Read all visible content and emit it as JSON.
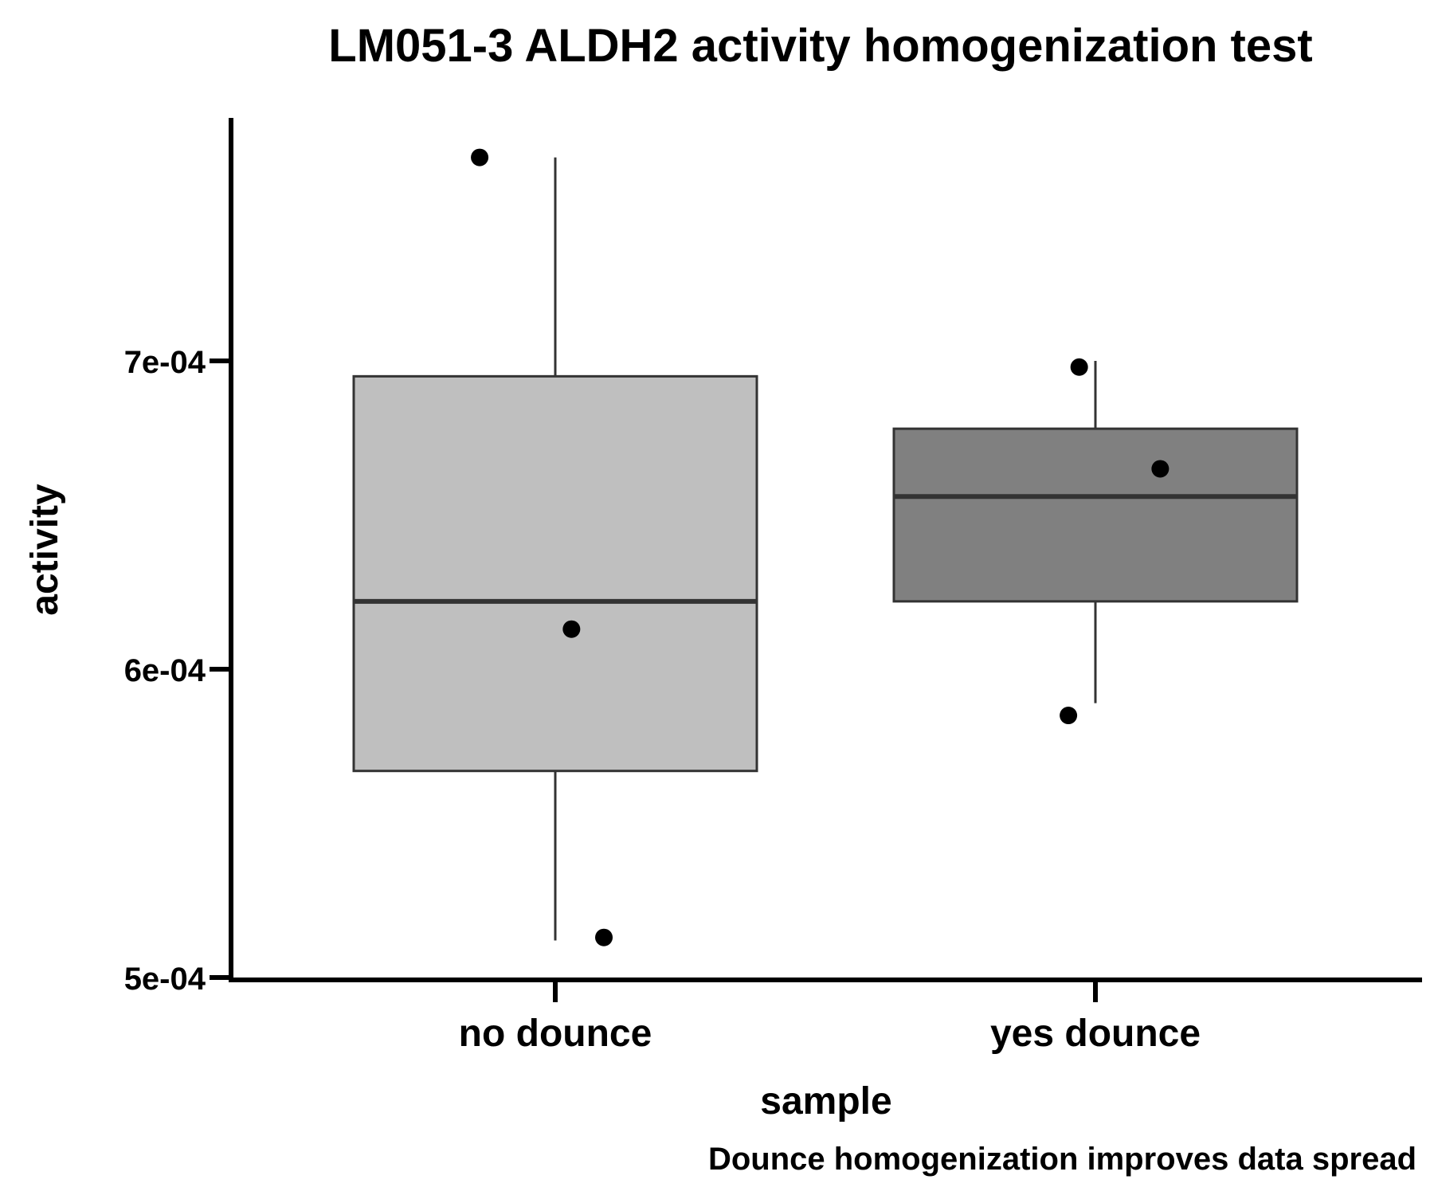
{
  "chart_data": {
    "type": "box",
    "title": "LM051-3 ALDH2 activity homogenization test",
    "xlabel": "sample",
    "ylabel": "activity",
    "caption": "Dounce homogenization improves data spread",
    "y_ticks": [
      {
        "value": 0.0005,
        "label": "5e-04"
      },
      {
        "value": 0.0006,
        "label": "6e-04"
      },
      {
        "value": 0.0007,
        "label": "7e-04"
      }
    ],
    "ylim": [
      0.0005,
      0.00078
    ],
    "grid": false,
    "legend": "none",
    "categories": [
      "no dounce",
      "yes dounce"
    ],
    "boxes": [
      {
        "category": "no dounce",
        "fill": "#bfbfbf",
        "whisker_low": 0.000512,
        "q1": 0.000567,
        "median": 0.000622,
        "q3": 0.000695,
        "whisker_high": 0.000766,
        "points": [
          {
            "x_jitter": -0.14,
            "y": 0.000766
          },
          {
            "x_jitter": 0.03,
            "y": 0.000613
          },
          {
            "x_jitter": 0.09,
            "y": 0.000513
          }
        ]
      },
      {
        "category": "yes dounce",
        "fill": "#808080",
        "whisker_low": 0.000589,
        "q1": 0.000622,
        "median": 0.000656,
        "q3": 0.000678,
        "whisker_high": 0.0007,
        "points": [
          {
            "x_jitter": -0.03,
            "y": 0.000698
          },
          {
            "x_jitter": 0.12,
            "y": 0.000665
          },
          {
            "x_jitter": -0.05,
            "y": 0.000585
          }
        ]
      }
    ]
  }
}
